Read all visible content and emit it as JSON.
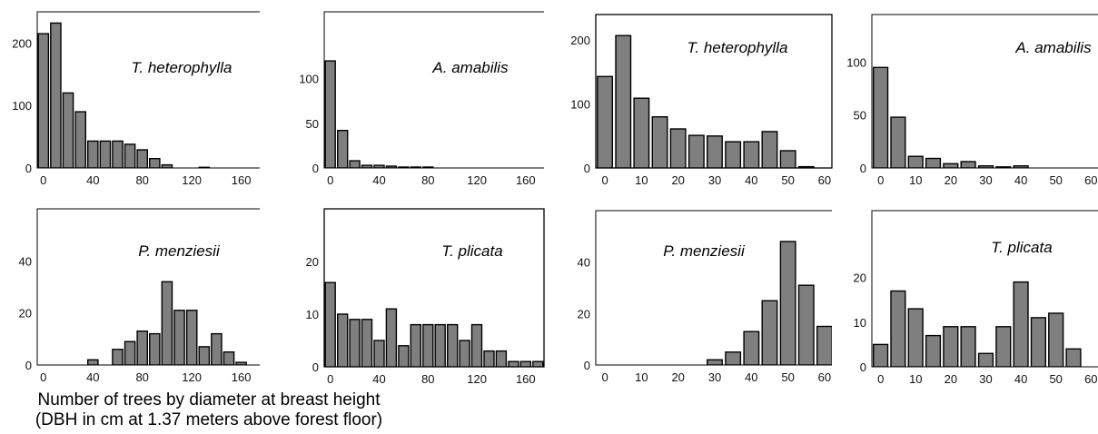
{
  "caption": {
    "line1": "Number of trees by diameter at breast height",
    "line2": "(DBH in cm at 1.37 meters above forest floor)"
  },
  "colors": {
    "bar_fill": "#7f7f7f",
    "bar_stroke": "#000000",
    "frame": "#000000"
  },
  "chart_data": [
    {
      "type": "bar",
      "title": "T. heterophylla",
      "xlabel": "",
      "ylabel": "",
      "x": [
        0,
        10,
        20,
        30,
        40,
        50,
        60,
        70,
        80,
        90,
        100,
        110,
        120,
        130,
        140,
        150,
        160
      ],
      "values": [
        215,
        232,
        120,
        90,
        43,
        43,
        43,
        38,
        29,
        15,
        5,
        0,
        0,
        1,
        0,
        0,
        0
      ],
      "xticks": [
        0,
        40,
        80,
        120,
        160
      ],
      "yticks": [
        0,
        100,
        200
      ],
      "ylim": [
        0,
        250
      ],
      "xlim": [
        -5,
        175
      ]
    },
    {
      "type": "bar",
      "title": "A. amabilis",
      "xlabel": "",
      "ylabel": "",
      "x": [
        0,
        10,
        20,
        30,
        40,
        50,
        60,
        70,
        80,
        90,
        100,
        110,
        120,
        130,
        140,
        150,
        160
      ],
      "values": [
        120,
        42,
        8,
        3,
        3,
        2,
        1,
        1,
        1,
        0,
        0,
        0,
        0,
        0,
        0,
        0,
        0
      ],
      "xticks": [
        0,
        40,
        80,
        120,
        160
      ],
      "yticks": [
        0,
        50,
        100
      ],
      "ylim": [
        0,
        175
      ],
      "xlim": [
        -5,
        175
      ]
    },
    {
      "type": "bar",
      "title": "T. heterophylla",
      "xlabel": "",
      "ylabel": "",
      "x": [
        0,
        5,
        10,
        15,
        20,
        25,
        30,
        35,
        40,
        45,
        50,
        55,
        60
      ],
      "values": [
        143,
        207,
        109,
        80,
        61,
        51,
        50,
        41,
        41,
        57,
        27,
        2,
        0
      ],
      "xticks": [
        0,
        10,
        20,
        30,
        40,
        50,
        60
      ],
      "yticks": [
        0,
        100,
        200
      ],
      "ylim": [
        0,
        240
      ],
      "xlim": [
        -2.5,
        62
      ]
    },
    {
      "type": "bar",
      "title": "A. amabilis",
      "xlabel": "",
      "ylabel": "",
      "x": [
        0,
        5,
        10,
        15,
        20,
        25,
        30,
        35,
        40,
        45,
        50,
        55,
        60
      ],
      "values": [
        95,
        48,
        11,
        9,
        4,
        6,
        2,
        1,
        2,
        0,
        0,
        0,
        0
      ],
      "xticks": [
        0,
        10,
        20,
        30,
        40,
        50,
        60
      ],
      "yticks": [
        0,
        50,
        100
      ],
      "ylim": [
        0,
        145
      ],
      "xlim": [
        -2.5,
        62
      ]
    },
    {
      "type": "bar",
      "title": "P. menziesii",
      "xlabel": "",
      "ylabel": "",
      "x": [
        0,
        10,
        20,
        30,
        40,
        50,
        60,
        70,
        80,
        90,
        100,
        110,
        120,
        130,
        140,
        150,
        160
      ],
      "values": [
        0,
        0,
        0,
        0,
        2,
        0,
        6,
        9,
        13,
        12,
        32,
        21,
        21,
        7,
        12,
        5,
        1
      ],
      "xticks": [
        0,
        40,
        80,
        120,
        160
      ],
      "yticks": [
        0,
        20,
        40
      ],
      "ylim": [
        0,
        60
      ],
      "xlim": [
        -5,
        175
      ]
    },
    {
      "type": "bar",
      "title": "T. plicata",
      "xlabel": "",
      "ylabel": "",
      "x": [
        0,
        10,
        20,
        30,
        40,
        50,
        60,
        70,
        80,
        90,
        100,
        110,
        120,
        130,
        140,
        150,
        160,
        170
      ],
      "values": [
        16,
        10,
        9,
        9,
        5,
        11,
        4,
        8,
        8,
        8,
        8,
        5,
        8,
        3,
        3,
        1,
        1,
        1
      ],
      "xticks": [
        0,
        40,
        80,
        120,
        160
      ],
      "yticks": [
        0,
        10,
        20
      ],
      "ylim": [
        0,
        30
      ],
      "xlim": [
        -5,
        175
      ]
    },
    {
      "type": "bar",
      "title": "P. menziesii",
      "xlabel": "",
      "ylabel": "",
      "x": [
        0,
        5,
        10,
        15,
        20,
        25,
        30,
        35,
        40,
        45,
        50,
        55,
        60
      ],
      "values": [
        0,
        0,
        0,
        0,
        0,
        0,
        2,
        5,
        13,
        25,
        48,
        31,
        15
      ],
      "xticks": [
        0,
        10,
        20,
        30,
        40,
        50,
        60
      ],
      "yticks": [
        0,
        20,
        40
      ],
      "ylim": [
        0,
        60
      ],
      "xlim": [
        -2.5,
        62
      ]
    },
    {
      "type": "bar",
      "title": "T. plicata",
      "xlabel": "",
      "ylabel": "",
      "x": [
        0,
        5,
        10,
        15,
        20,
        25,
        30,
        35,
        40,
        45,
        50,
        55,
        60
      ],
      "values": [
        5,
        17,
        13,
        7,
        9,
        9,
        3,
        9,
        19,
        11,
        12,
        4,
        0
      ],
      "xticks": [
        0,
        10,
        20,
        30,
        40,
        50,
        60
      ],
      "yticks": [
        0,
        10,
        20
      ],
      "ylim": [
        0,
        35
      ],
      "xlim": [
        -2.5,
        62
      ]
    }
  ]
}
